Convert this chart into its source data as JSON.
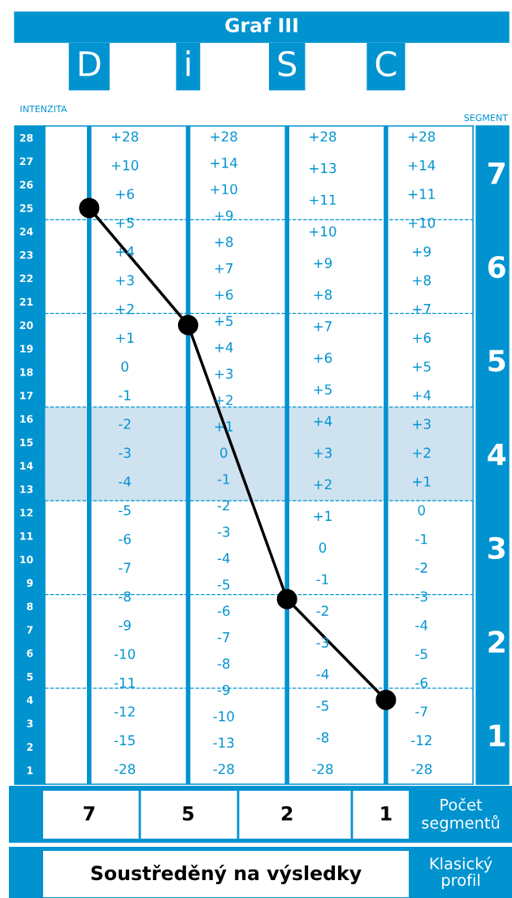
{
  "chart_data": {
    "type": "line",
    "title": "Graf III",
    "ylabel": "INTENZITA",
    "y2label": "SEGMENT",
    "categories": [
      "D",
      "i",
      "S",
      "C"
    ],
    "series": [
      {
        "color": "#000000",
        "values": [
          25,
          20,
          8.3,
          4
        ]
      }
    ],
    "marker": "circle",
    "line_style": "solid",
    "grid": "x",
    "ylim": [
      0.4,
      28.5
    ],
    "yticks": [
      1,
      2,
      3,
      4,
      5,
      6,
      7,
      8,
      9,
      10,
      11,
      12,
      13,
      14,
      15,
      16,
      17,
      18,
      19,
      20,
      21,
      22,
      23,
      24,
      25,
      26,
      27,
      28
    ],
    "y2lim": [
      0.475,
      7.5
    ],
    "y2ticks": [
      1,
      2,
      3,
      4,
      5,
      6,
      7
    ],
    "ref_lines": [
      {
        "axis": "y",
        "value": 4.5,
        "color": "#0093d0",
        "line_style": "dashed"
      },
      {
        "axis": "y",
        "value": 8.5,
        "color": "#0093d0",
        "line_style": "dashed"
      },
      {
        "axis": "y",
        "value": 12.5,
        "color": "#0093d0",
        "line_style": "dashed"
      },
      {
        "axis": "y",
        "value": 16.5,
        "color": "#0093d0",
        "line_style": "dashed"
      },
      {
        "axis": "y",
        "value": 20.5,
        "color": "#0093d0",
        "line_style": "dashed"
      },
      {
        "axis": "y",
        "value": 24.5,
        "color": "#0093d0",
        "line_style": "dashed"
      }
    ],
    "bands": [
      {
        "axis": "y",
        "from": 12.5,
        "to": 16.5,
        "color": "#cfe2f0"
      }
    ],
    "annotations": [
      "7",
      "5",
      "2",
      "1",
      "Počet segmentů",
      "Soustředěný na výsledky",
      "Klasický profil",
      "+28\n+10\n+6\n+5\n+4\n+3\n+2\n+1\n0\n-1\n-2\n-3\n-4\n-5\n-6\n-7\n-8\n-9\n-10\n-11\n-12\n-15\n-28",
      "+28\n+14\n+10\n+9\n+8\n+7\n+6\n+5\n+4\n+3\n+2\n+1\n0\n-1\n-2\n-3\n-4\n-5\n-6\n-7\n-8\n-9\n-10\n-13\n-28",
      "+28\n+13\n+11\n+10\n+9\n+8\n+7\n+6\n+5\n+4\n+3\n+2\n+1\n0\n-1\n-2\n-3\n-4\n-5\n-8\n-28",
      "+28\n+14\n+11\n+10\n+9\n+8\n+7\n+6\n+5\n+4\n+3\n+2\n+1\n0\n-1\n-2\n-3\n-4\n-5\n-6\n-7\n-12\n-28"
    ]
  }
}
